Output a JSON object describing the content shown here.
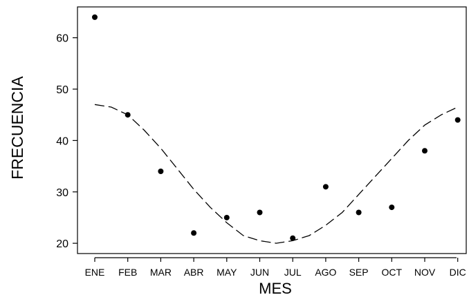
{
  "chart_data": {
    "type": "scatter",
    "title": "",
    "xlabel": "MES",
    "ylabel": "FRECUENCIA",
    "categories": [
      "ENE",
      "FEB",
      "MAR",
      "ABR",
      "MAY",
      "JUN",
      "JUL",
      "AGO",
      "SEP",
      "OCT",
      "NOV",
      "DIC"
    ],
    "y_ticks": [
      20,
      30,
      40,
      50,
      60
    ],
    "ylim": [
      18,
      66
    ],
    "grid": false,
    "legend": "none",
    "series": [
      {
        "type": "scatter",
        "values": [
          64,
          45,
          34,
          22,
          25,
          26,
          21,
          31,
          26,
          27,
          38,
          44
        ]
      },
      {
        "type": "line",
        "style": "dashed",
        "x": [
          0,
          0.5,
          1,
          1.5,
          2,
          2.5,
          3,
          3.5,
          4,
          4.5,
          5,
          5.5,
          6,
          6.5,
          7,
          7.5,
          8,
          8.5,
          9,
          9.5,
          10,
          10.5,
          11
        ],
        "values": [
          47,
          46.5,
          45,
          42,
          38.5,
          34.5,
          30.5,
          27,
          24,
          21.5,
          20.5,
          20,
          20.5,
          21.5,
          23.5,
          26,
          29.5,
          33,
          36.5,
          40,
          43,
          45,
          46.5
        ]
      }
    ]
  }
}
